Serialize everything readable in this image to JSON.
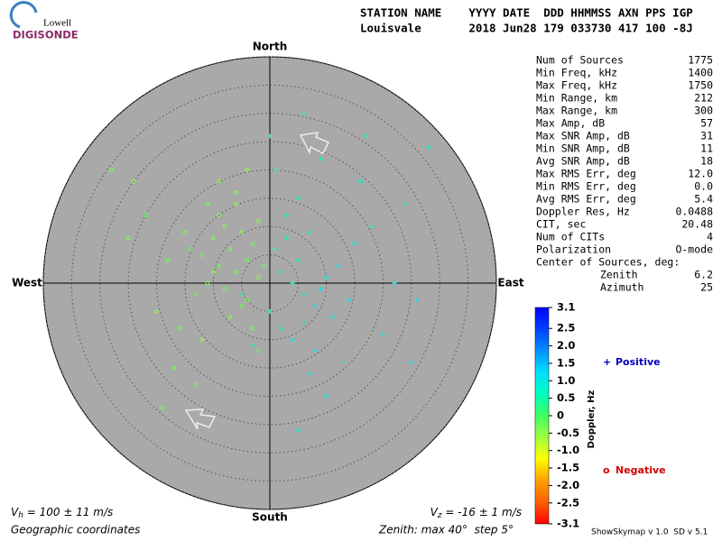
{
  "header": {
    "logo_top": "Lowell",
    "logo_bottom": "DIGISONDE",
    "labels": "STATION NAME    YYYY DATE  DDD HHMMSS AXN PPS IGP",
    "values": "Louisvale       2018 Jun28 179 033730 417 100 -8J"
  },
  "chart_data": {
    "type": "skymap",
    "directions": {
      "north": "North",
      "south": "South",
      "east": "East",
      "west": "West"
    },
    "rlim": [
      0,
      40
    ],
    "rings": [
      5,
      10,
      15,
      20,
      25,
      30,
      35,
      40
    ],
    "points": {
      "x": [
        -12,
        -10,
        -9,
        -8,
        -7,
        -6,
        -5,
        -4,
        -3,
        -2,
        -11,
        -13,
        -14,
        -9,
        -6,
        -4,
        -2,
        -8,
        -10,
        -5,
        -15,
        -18,
        -20,
        -22,
        -25,
        -16,
        -12,
        -7,
        -3,
        -1,
        -6,
        -9,
        -11,
        -4,
        -2,
        -17,
        -19,
        -24,
        -28,
        -13,
        2,
        4,
        6,
        8,
        10,
        1,
        3,
        5,
        7,
        9,
        12,
        14,
        11,
        0,
        2,
        4,
        6,
        8,
        3,
        5,
        15,
        18,
        20,
        24,
        26,
        13,
        1,
        7,
        9,
        16,
        22,
        10,
        -3,
        -5,
        0,
        6,
        17,
        28,
        25,
        5
      ],
      "y": [
        5,
        8,
        3,
        10,
        6,
        2,
        9,
        4,
        7,
        1,
        0,
        -2,
        6,
        12,
        14,
        -3,
        11,
        -1,
        2,
        -4,
        9,
        4,
        -5,
        12,
        8,
        -8,
        -10,
        -6,
        -8,
        3,
        16,
        18,
        14,
        20,
        -12,
        -15,
        -22,
        18,
        20,
        -18,
        2,
        0,
        -2,
        -4,
        1,
        6,
        8,
        4,
        9,
        -1,
        3,
        -3,
        -6,
        -5,
        -8,
        -10,
        -7,
        -12,
        12,
        15,
        7,
        10,
        -9,
        14,
        -3,
        -14,
        20,
        -16,
        22,
        18,
        0,
        -20,
        -11,
        -2,
        26,
        30,
        26,
        24,
        -14,
        -26
      ],
      "doppler": [
        -0.3,
        -0.4,
        -0.2,
        -0.5,
        -0.3,
        -0.4,
        -0.6,
        -0.2,
        -0.3,
        -0.4,
        -0.5,
        -0.3,
        -0.2,
        -0.4,
        -0.6,
        -0.3,
        -0.4,
        -0.2,
        -0.5,
        -0.3,
        -0.4,
        -0.3,
        -0.5,
        -0.2,
        -0.4,
        -0.3,
        -0.6,
        -0.4,
        -0.3,
        -0.2,
        -0.5,
        -0.4,
        -0.3,
        -0.6,
        -0.2,
        -0.4,
        -0.3,
        -0.5,
        -0.4,
        -0.3,
        0.5,
        0.7,
        0.9,
        1.0,
        0.8,
        0.4,
        0.6,
        0.7,
        0.5,
        1.1,
        0.9,
        1.2,
        1.0,
        0.6,
        0.8,
        1.0,
        0.9,
        1.1,
        0.4,
        0.5,
        0.8,
        0.7,
        1.0,
        0.6,
        1.2,
        0.9,
        0.4,
        1.0,
        0.5,
        0.7,
        1.1,
        0.8,
        0.5,
        0.6,
        0.3,
        0.5,
        0.6,
        0.7,
        1.0,
        0.8
      ]
    },
    "colorbar": {
      "title": "Doppler, Hz",
      "lim": [
        -3.1,
        3.1
      ],
      "colormap": [
        "#ff0000",
        "#ff6000",
        "#ffa000",
        "#ffff00",
        "#a0ff40",
        "#40ff60",
        "#00ffc0",
        "#00e0ff",
        "#0090ff",
        "#0040ff",
        "#0000ff"
      ],
      "ticks": [
        3.1,
        2.5,
        {
          "value": 2.0,
          "label": "2.0"
        },
        1.5,
        {
          "value": 1.0,
          "label": "1.0"
        },
        0.5,
        0,
        -0.5,
        {
          "value": -1.0,
          "label": "-1.0"
        },
        -1.5,
        {
          "value": -2.0,
          "label": "-2.0"
        },
        -2.5,
        -3.1
      ]
    },
    "legend": [
      {
        "symbol": "+",
        "label": "Positive",
        "color": "#0000c0"
      },
      {
        "symbol": "o",
        "label": "Negative",
        "color": "#d00000"
      }
    ]
  },
  "stats": {
    "rows": [
      [
        "Num of Sources",
        "1775"
      ],
      [
        "Min Freq, kHz",
        "1400"
      ],
      [
        "Max Freq, kHz",
        "1750"
      ],
      [
        "Min Range, km",
        "212"
      ],
      [
        "Max Range, km",
        "300"
      ],
      [
        "Max Amp, dB",
        "57"
      ],
      [
        "Max SNR Amp, dB",
        "31"
      ],
      [
        "Min SNR Amp, dB",
        "11"
      ],
      [
        "Avg SNR Amp, dB",
        "18"
      ],
      [
        "Max RMS Err, deg",
        "12.0"
      ],
      [
        "Min RMS Err, deg",
        "0.0"
      ],
      [
        "Avg RMS Err, deg",
        "5.4"
      ],
      [
        "Doppler Res, Hz",
        "0.0488"
      ],
      [
        "CIT, sec",
        "20.48"
      ],
      [
        "Num of CITs",
        "4"
      ],
      [
        "Polarization",
        "O-mode"
      ]
    ],
    "center_title": "Center of Sources, deg:",
    "center_rows": [
      [
        "Zenith",
        "6.2"
      ],
      [
        "Azimuth",
        "25"
      ]
    ]
  },
  "footer": {
    "vh": {
      "symbol": "V",
      "sub": "h",
      "text": " = 100 ± 11 m/s"
    },
    "vz": {
      "symbol": "V",
      "sub": "z",
      "text": " = -16 ± 1 m/s"
    },
    "coords": "Geographic coordinates",
    "zenith": "Zenith: max 40°  step 5°",
    "version": "ShowSkymap v 1.0  SD v 5.1"
  }
}
